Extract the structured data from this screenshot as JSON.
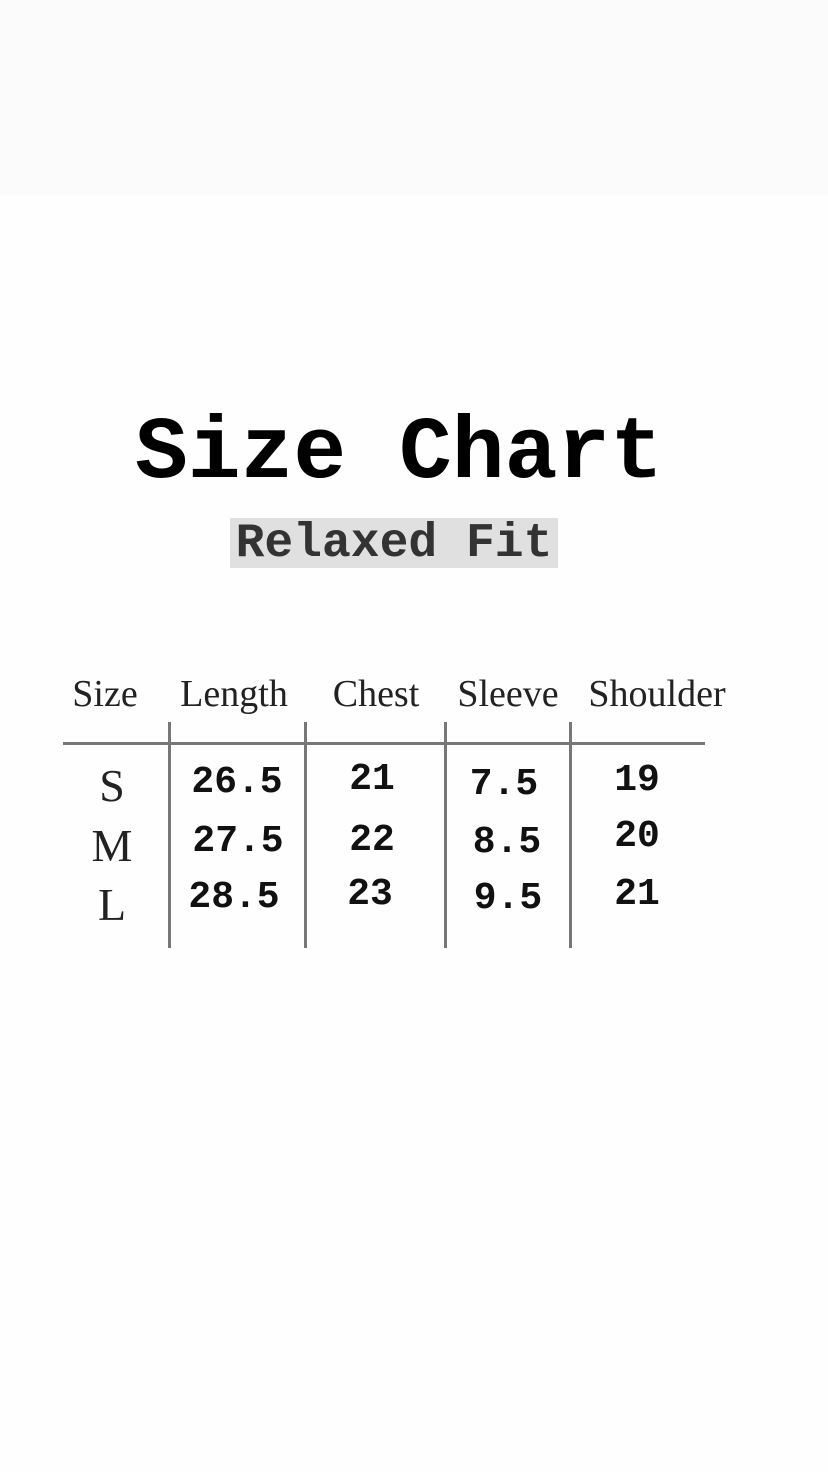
{
  "title": "Size Chart",
  "subtitle": "Relaxed Fit",
  "table": {
    "headers": [
      "Size",
      "Length",
      "Chest",
      "Sleeve",
      "Shoulder"
    ],
    "rows": [
      {
        "size": "S",
        "length": "26.5",
        "chest": "21",
        "sleeve": "7.5",
        "shoulder": "19"
      },
      {
        "size": "M",
        "length": "27.5",
        "chest": "22",
        "sleeve": "8.5",
        "shoulder": "20"
      },
      {
        "size": "L",
        "length": "28.5",
        "chest": "23",
        "sleeve": "9.5",
        "shoulder": "21"
      }
    ]
  }
}
